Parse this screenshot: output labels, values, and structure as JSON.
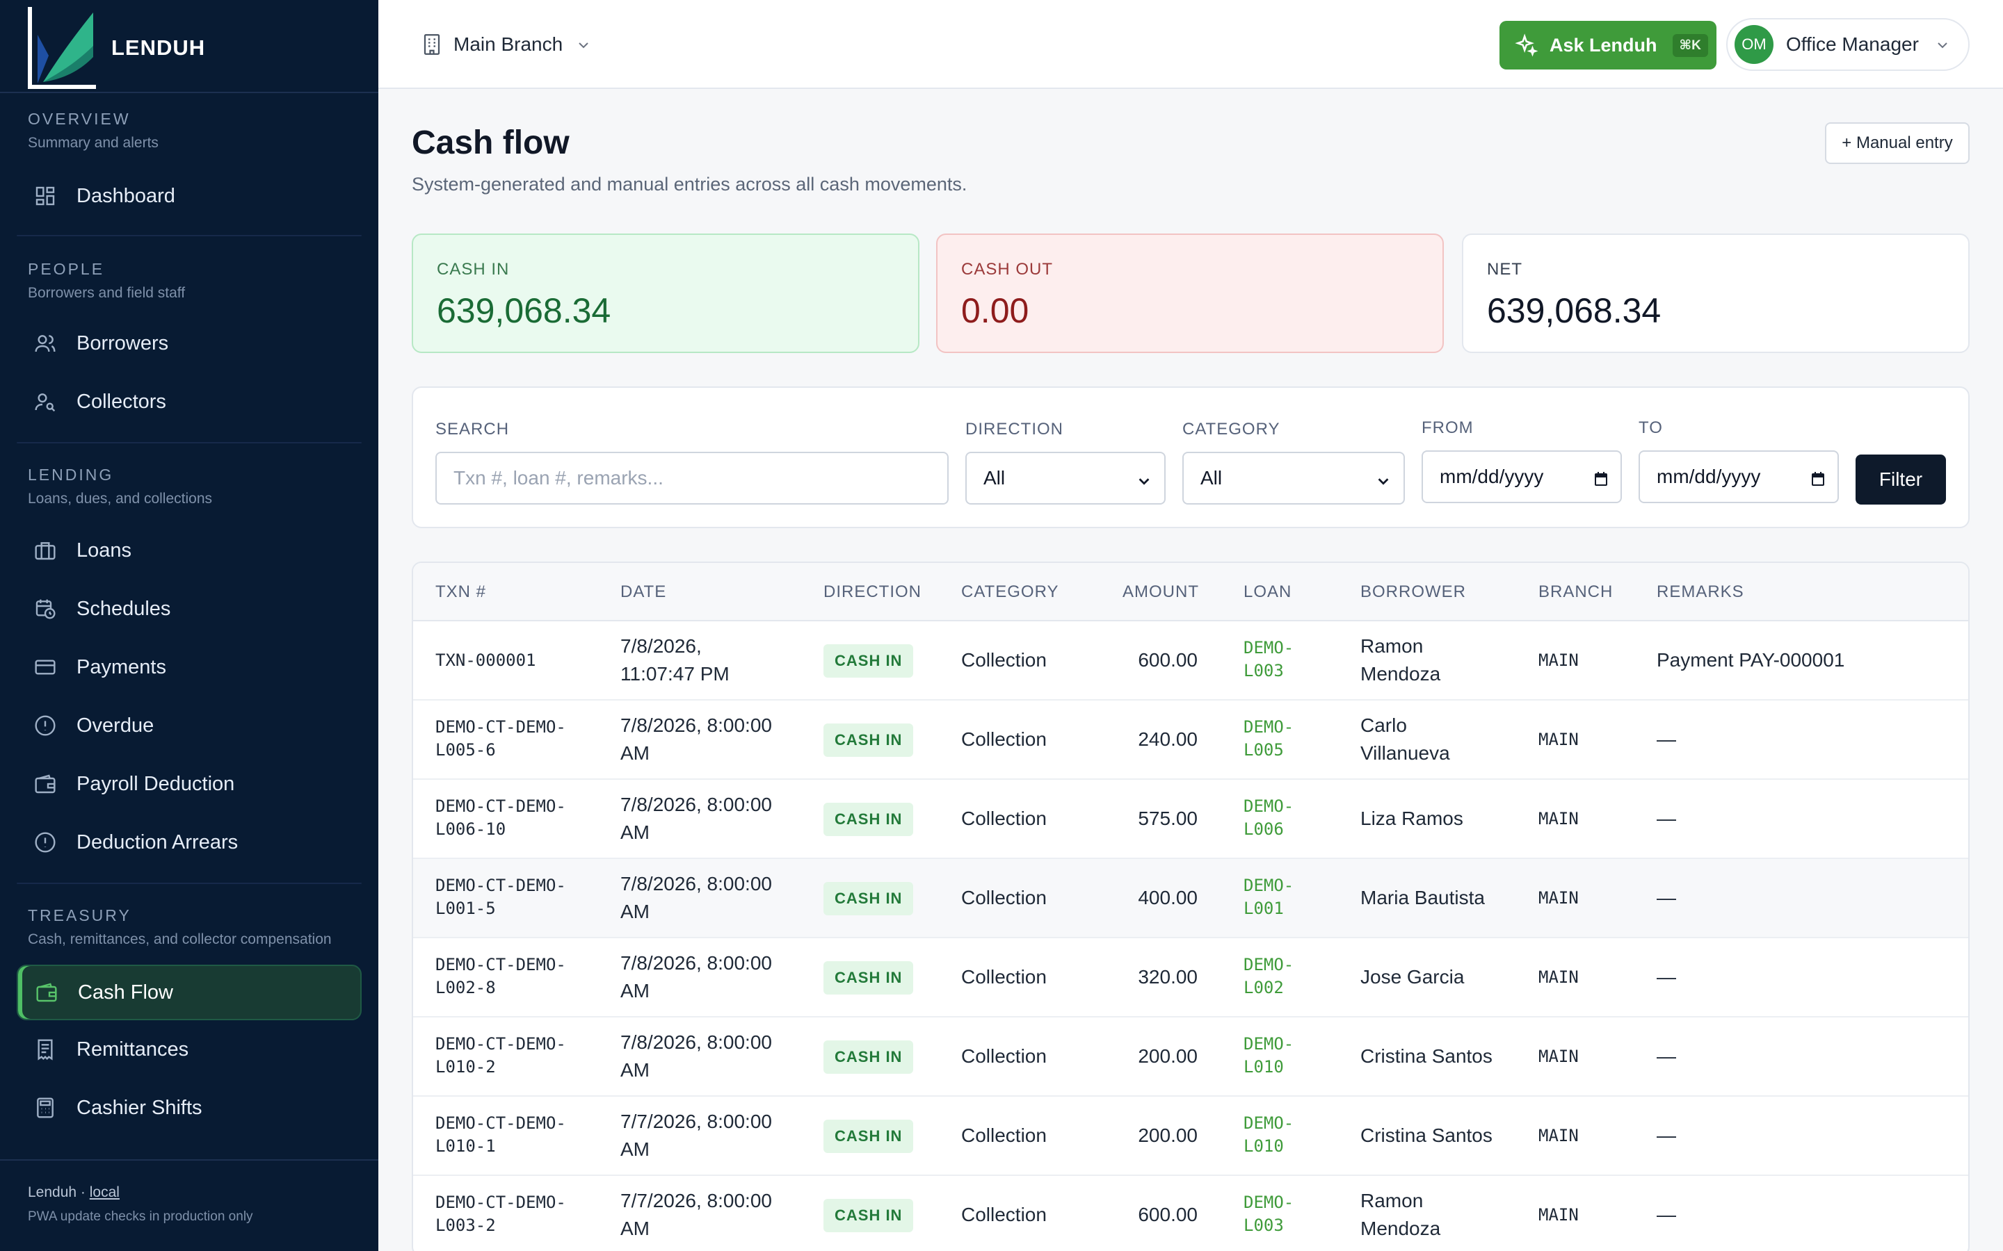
{
  "app": {
    "name": "LENDUH"
  },
  "sidebar": {
    "sections": [
      {
        "title": "OVERVIEW",
        "subtitle": "Summary and alerts"
      },
      {
        "title": "PEOPLE",
        "subtitle": "Borrowers and field staff"
      },
      {
        "title": "LENDING",
        "subtitle": "Loans, dues, and collections"
      },
      {
        "title": "TREASURY",
        "subtitle": "Cash, remittances, and collector compensation"
      }
    ],
    "items": [
      {
        "label": "Dashboard",
        "icon": "dashboard-icon"
      },
      {
        "label": "Borrowers",
        "icon": "users-icon"
      },
      {
        "label": "Collectors",
        "icon": "user-search-icon"
      },
      {
        "label": "Loans",
        "icon": "briefcase-icon"
      },
      {
        "label": "Schedules",
        "icon": "calendar-clock-icon"
      },
      {
        "label": "Payments",
        "icon": "credit-card-icon"
      },
      {
        "label": "Overdue",
        "icon": "alert-circle-icon"
      },
      {
        "label": "Payroll Deduction",
        "icon": "wallet-icon"
      },
      {
        "label": "Deduction Arrears",
        "icon": "alert-circle-icon"
      },
      {
        "label": "Cash Flow",
        "icon": "wallet-icon",
        "active": true
      },
      {
        "label": "Remittances",
        "icon": "receipt-icon"
      },
      {
        "label": "Cashier Shifts",
        "icon": "calculator-icon"
      }
    ],
    "footer": {
      "app": "Lenduh · ",
      "env": "local",
      "note": "PWA update checks in production only"
    }
  },
  "topbar": {
    "branch": "Main Branch",
    "ask_label": "Ask Lenduh",
    "ask_shortcut": "⌘K",
    "user_initials": "OM",
    "user_role": "Office Manager"
  },
  "page": {
    "title": "Cash flow",
    "subtitle": "System-generated and manual entries across all cash movements.",
    "manual_entry": "+ Manual entry"
  },
  "stats": {
    "cash_in": {
      "label": "CASH IN",
      "value": "639,068.34"
    },
    "cash_out": {
      "label": "CASH OUT",
      "value": "0.00"
    },
    "net": {
      "label": "NET",
      "value": "639,068.34"
    }
  },
  "filters": {
    "search_label": "SEARCH",
    "search_placeholder": "Txn #, loan #, remarks...",
    "direction_label": "DIRECTION",
    "direction_value": "All",
    "category_label": "CATEGORY",
    "category_value": "All",
    "from_label": "FROM",
    "from_placeholder": "mm/dd/yyyy",
    "to_label": "TO",
    "to_placeholder": "mm/dd/yyyy",
    "filter_button": "Filter"
  },
  "table": {
    "headers": [
      "TXN #",
      "DATE",
      "DIRECTION",
      "CATEGORY",
      "AMOUNT",
      "LOAN",
      "BORROWER",
      "BRANCH",
      "REMARKS"
    ],
    "rows": [
      {
        "txn": [
          "TXN-000001"
        ],
        "date": [
          "7/8/2026,",
          "11:07:47 PM"
        ],
        "direction": "CASH IN",
        "category": "Collection",
        "amount": "600.00",
        "loan": [
          "DEMO-",
          "L003"
        ],
        "borrower": [
          "Ramon",
          "Mendoza"
        ],
        "branch": "MAIN",
        "remarks": "Payment PAY-000001"
      },
      {
        "txn": [
          "DEMO-CT-DEMO-",
          "L005-6"
        ],
        "date": [
          "7/8/2026, 8:00:00",
          "AM"
        ],
        "direction": "CASH IN",
        "category": "Collection",
        "amount": "240.00",
        "loan": [
          "DEMO-",
          "L005"
        ],
        "borrower": [
          "Carlo",
          "Villanueva"
        ],
        "branch": "MAIN",
        "remarks": "—"
      },
      {
        "txn": [
          "DEMO-CT-DEMO-",
          "L006-10"
        ],
        "date": [
          "7/8/2026, 8:00:00",
          "AM"
        ],
        "direction": "CASH IN",
        "category": "Collection",
        "amount": "575.00",
        "loan": [
          "DEMO-",
          "L006"
        ],
        "borrower": [
          "Liza Ramos"
        ],
        "branch": "MAIN",
        "remarks": "—"
      },
      {
        "txn": [
          "DEMO-CT-DEMO-",
          "L001-5"
        ],
        "date": [
          "7/8/2026, 8:00:00",
          "AM"
        ],
        "direction": "CASH IN",
        "category": "Collection",
        "amount": "400.00",
        "loan": [
          "DEMO-",
          "L001"
        ],
        "borrower": [
          "Maria Bautista"
        ],
        "branch": "MAIN",
        "remarks": "—"
      },
      {
        "txn": [
          "DEMO-CT-DEMO-",
          "L002-8"
        ],
        "date": [
          "7/8/2026, 8:00:00",
          "AM"
        ],
        "direction": "CASH IN",
        "category": "Collection",
        "amount": "320.00",
        "loan": [
          "DEMO-",
          "L002"
        ],
        "borrower": [
          "Jose Garcia"
        ],
        "branch": "MAIN",
        "remarks": "—"
      },
      {
        "txn": [
          "DEMO-CT-DEMO-",
          "L010-2"
        ],
        "date": [
          "7/8/2026, 8:00:00",
          "AM"
        ],
        "direction": "CASH IN",
        "category": "Collection",
        "amount": "200.00",
        "loan": [
          "DEMO-",
          "L010"
        ],
        "borrower": [
          "Cristina Santos"
        ],
        "branch": "MAIN",
        "remarks": "—"
      },
      {
        "txn": [
          "DEMO-CT-DEMO-",
          "L010-1"
        ],
        "date": [
          "7/7/2026, 8:00:00",
          "AM"
        ],
        "direction": "CASH IN",
        "category": "Collection",
        "amount": "200.00",
        "loan": [
          "DEMO-",
          "L010"
        ],
        "borrower": [
          "Cristina Santos"
        ],
        "branch": "MAIN",
        "remarks": "—"
      },
      {
        "txn": [
          "DEMO-CT-DEMO-",
          "L003-2"
        ],
        "date": [
          "7/7/2026, 8:00:00",
          "AM"
        ],
        "direction": "CASH IN",
        "category": "Collection",
        "amount": "600.00",
        "loan": [
          "DEMO-",
          "L003"
        ],
        "borrower": [
          "Ramon",
          "Mendoza"
        ],
        "branch": "MAIN",
        "remarks": "—"
      }
    ]
  },
  "colors": {
    "sidebar_bg": "#081b33",
    "accent_green": "#3f9b3a",
    "cash_in_bg": "#eafaef",
    "cash_out_bg": "#fdeeee"
  }
}
